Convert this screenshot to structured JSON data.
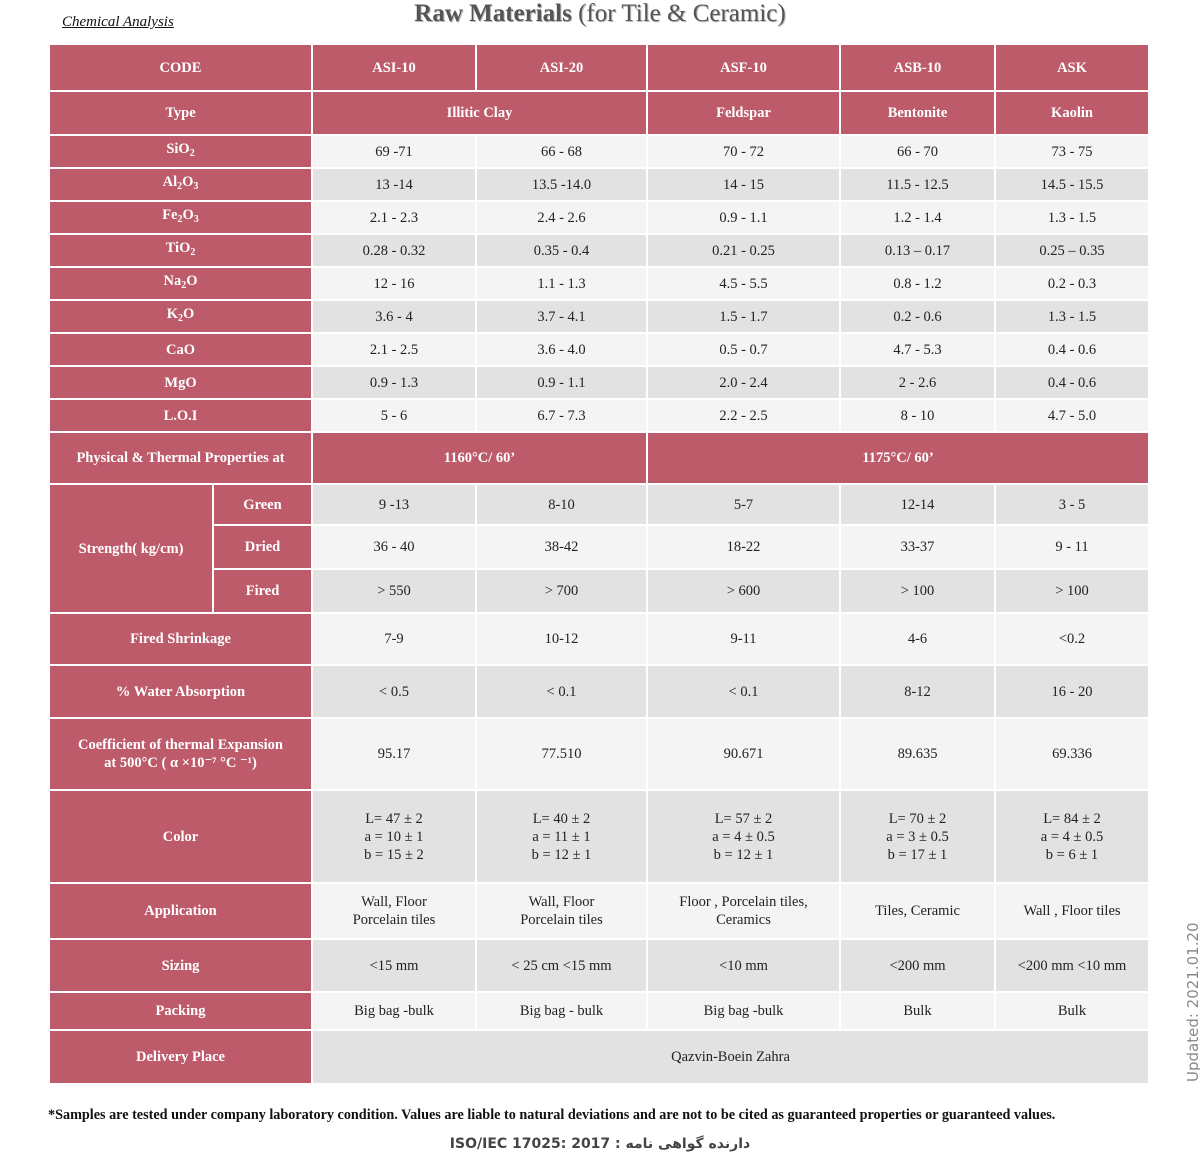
{
  "top_label": "Chemical Analysis",
  "title_bold": "Raw Materials",
  "title_rest": "(for Tile & Ceramic)",
  "header": {
    "code": "CODE",
    "codes": [
      "ASI-10",
      "ASI-20",
      "ASF-10",
      "ASB-10",
      "ASK"
    ]
  },
  "type_row": {
    "label": "Type",
    "illitic": "Illitic Clay",
    "feldspar": "Feldspar",
    "bentonite": "Bentonite",
    "kaolin": "Kaolin"
  },
  "chemical": [
    {
      "base": "SiO",
      "sub": "2",
      "tail": "",
      "values": [
        "69 -71",
        "66 - 68",
        "70 - 72",
        "66 - 70",
        "73 - 75"
      ]
    },
    {
      "base": "Al",
      "sub": "2",
      "mid": "O",
      "sub2": "3",
      "values": [
        "13 -14",
        "13.5 -14.0",
        "14 - 15",
        "11.5 - 12.5",
        "14.5 - 15.5"
      ]
    },
    {
      "base": "Fe",
      "sub": "2",
      "mid": "O",
      "sub2": "3",
      "values": [
        "2.1 - 2.3",
        "2.4 - 2.6",
        "0.9 - 1.1",
        "1.2 - 1.4",
        "1.3 - 1.5"
      ]
    },
    {
      "base": "TiO",
      "sub": "2",
      "tail": "",
      "values": [
        "0.28 - 0.32",
        "0.35 - 0.4",
        "0.21 - 0.25",
        "0.13 – 0.17",
        "0.25 – 0.35"
      ]
    },
    {
      "base": "Na",
      "sub": "2",
      "tail": "O",
      "values": [
        "12 - 16",
        "1.1 - 1.3",
        "4.5 - 5.5",
        "0.8 - 1.2",
        "0.2 - 0.3"
      ]
    },
    {
      "base": "K",
      "sub": "2",
      "tail": "O",
      "values": [
        "3.6  -  4",
        "3.7 - 4.1",
        "1.5 - 1.7",
        "0.2 - 0.6",
        "1.3  - 1.5"
      ]
    },
    {
      "base": "CaO",
      "sub": "",
      "tail": "",
      "values": [
        "2.1 - 2.5",
        "3.6 - 4.0",
        "0.5 - 0.7",
        "4.7 - 5.3",
        "0.4 - 0.6"
      ]
    },
    {
      "base": "MgO",
      "sub": "",
      "tail": "",
      "values": [
        "0.9 - 1.3",
        "0.9 - 1.1",
        "2.0 - 2.4",
        "2 - 2.6",
        "0.4  - 0.6"
      ]
    },
    {
      "base": "L.O.I",
      "sub": "",
      "tail": "",
      "values": [
        "5 - 6",
        "6.7 - 7.3",
        "2.2 - 2.5",
        "8 - 10",
        "4.7 - 5.0"
      ]
    }
  ],
  "physical": {
    "label": "Physical & Thermal Properties at",
    "temp1": "1160°C/ 60’",
    "temp2": "1175°C/ 60’"
  },
  "strength": {
    "label": "Strength(  kg/cm)",
    "rows": [
      {
        "name": "Green",
        "values": [
          "9 -13",
          "8-10",
          "5-7",
          "12-14",
          "3 - 5"
        ]
      },
      {
        "name": "Dried",
        "values": [
          "36 - 40",
          "38-42",
          "18-22",
          "33-37",
          "9 - 11"
        ]
      },
      {
        "name": "Fired",
        "values": [
          "> 550",
          "> 700",
          "> 600",
          "> 100",
          "> 100"
        ]
      }
    ]
  },
  "shrinkage": {
    "label": "Fired Shrinkage",
    "values": [
      "7-9",
      "10-12",
      "9-11",
      "4-6",
      "<0.2"
    ]
  },
  "water": {
    "label": "% Water Absorption",
    "values": [
      "< 0.5",
      "< 0.1",
      "< 0.1",
      "8-12",
      "16 - 20"
    ]
  },
  "thermal": {
    "label_line1": "Coefficient of   thermal Expansion",
    "label_line2": "at 500°C    ( α ×10⁻⁷ °C ⁻¹)",
    "values": [
      "95.17",
      "77.510",
      "90.671",
      "89.635",
      "69.336"
    ]
  },
  "color": {
    "label": "Color",
    "values": [
      [
        "L= 47 ± 2",
        "a = 10 ± 1",
        "b = 15 ± 2"
      ],
      [
        "L= 40 ± 2",
        "a = 11 ± 1",
        "b = 12 ± 1"
      ],
      [
        "L= 57 ± 2",
        "a = 4 ± 0.5",
        "b = 12 ± 1"
      ],
      [
        "L= 70 ± 2",
        "a = 3 ± 0.5",
        "b = 17 ± 1"
      ],
      [
        "L= 84 ± 2",
        "a = 4 ± 0.5",
        "b = 6 ± 1"
      ]
    ]
  },
  "application": {
    "label": "Application",
    "values": [
      [
        "Wall, Floor",
        "Porcelain tiles"
      ],
      [
        "Wall, Floor",
        "Porcelain tiles"
      ],
      [
        "Floor , Porcelain tiles,",
        "Ceramics"
      ],
      [
        "Tiles, Ceramic",
        ""
      ],
      [
        "Wall , Floor tiles",
        ""
      ]
    ]
  },
  "sizing": {
    "label": "Sizing",
    "values": [
      "<15 mm",
      "< 25 cm   <15 mm",
      "<10 mm",
      "<200 mm",
      "<200 mm <10 mm"
    ]
  },
  "packing": {
    "label": "Packing",
    "values": [
      "Big bag -bulk",
      "Big bag - bulk",
      "Big bag -bulk",
      "Bulk",
      "Bulk"
    ]
  },
  "delivery": {
    "label": "Delivery Place",
    "value": "Qazvin-Boein Zahra"
  },
  "side_note": "Updated: 2021.01.20",
  "footnote": "*Samples are tested under company laboratory condition. Values are liable to natural deviations and are not to be cited as  guaranteed properties or guaranteed values.",
  "cert": "ISO/IEC 17025: 2017 :  دارنده گواهی نامه"
}
